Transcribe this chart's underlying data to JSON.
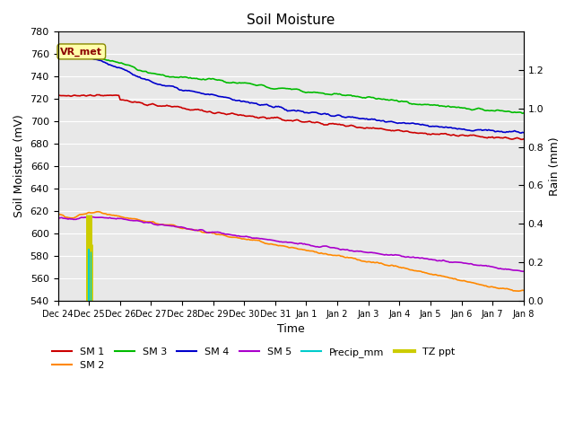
{
  "title": "Soil Moisture",
  "xlabel": "Time",
  "ylabel_left": "Soil Moisture (mV)",
  "ylabel_right": "Rain (mm)",
  "ylim_left": [
    540,
    780
  ],
  "ylim_right": [
    0.0,
    1.4
  ],
  "x_ticks": [
    "Dec 24",
    "Dec 25",
    "Dec 26",
    "Dec 27",
    "Dec 28",
    "Dec 29",
    "Dec 30",
    "Dec 31",
    "Jan 1",
    "Jan 2",
    "Jan 3",
    "Jan 4",
    "Jan 5",
    "Jan 6",
    "Jan 7",
    "Jan 8"
  ],
  "annotation_text": "VR_met",
  "sm1_color": "#cc0000",
  "sm2_color": "#ff8800",
  "sm3_color": "#00bb00",
  "sm4_color": "#0000cc",
  "sm5_color": "#aa00cc",
  "precip_color": "#00cccc",
  "tz_color": "#cccc00",
  "bg_color": "#e8e8e8",
  "grid_color": "#ffffff",
  "legend_row1": [
    "SM 1",
    "SM 2",
    "SM 3",
    "SM 4",
    "SM 5",
    "Precip_mm"
  ],
  "legend_row2": [
    "TZ ppt"
  ]
}
